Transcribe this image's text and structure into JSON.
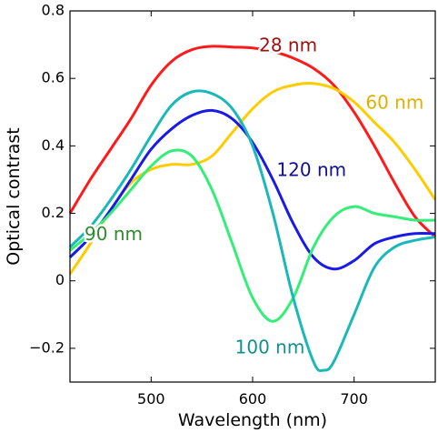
{
  "chart_data": {
    "type": "line",
    "xlabel": "Wavelength (nm)",
    "ylabel": "Optical contrast",
    "xlim": [
      420,
      780
    ],
    "ylim": [
      -0.3,
      0.8
    ],
    "xticks": [
      500,
      600,
      700
    ],
    "xtick_labels": [
      "500",
      "600",
      "700"
    ],
    "yticks": [
      -0.2,
      0,
      0.2,
      0.4,
      0.6,
      0.8
    ],
    "ytick_labels": [
      "−0.2",
      "0",
      "0.2",
      "0.4",
      "0.6",
      "0.8"
    ],
    "grid": false,
    "series": [
      {
        "name": "28 nm",
        "color": "#ff1a1a",
        "label_color": "#a01010",
        "x": [
          420,
          440,
          460,
          480,
          500,
          520,
          540,
          560,
          580,
          600,
          620,
          640,
          660,
          680,
          700,
          720,
          740,
          760,
          780
        ],
        "y": [
          0.2,
          0.3,
          0.39,
          0.48,
          0.58,
          0.65,
          0.685,
          0.695,
          0.693,
          0.69,
          0.68,
          0.66,
          0.63,
          0.58,
          0.5,
          0.4,
          0.29,
          0.19,
          0.13
        ]
      },
      {
        "name": "60 nm",
        "color": "#ffcc00",
        "label_color": "#e0b000",
        "x": [
          420,
          440,
          460,
          480,
          500,
          520,
          540,
          560,
          580,
          600,
          620,
          640,
          660,
          680,
          700,
          720,
          740,
          760,
          780
        ],
        "y": [
          0.02,
          0.11,
          0.21,
          0.29,
          0.33,
          0.345,
          0.345,
          0.37,
          0.44,
          0.51,
          0.56,
          0.58,
          0.585,
          0.57,
          0.53,
          0.47,
          0.41,
          0.33,
          0.24
        ]
      },
      {
        "name": "120 nm",
        "color": "#1a1ae6",
        "label_color": "#101090",
        "x": [
          420,
          440,
          460,
          480,
          500,
          520,
          540,
          560,
          580,
          600,
          620,
          640,
          660,
          680,
          700,
          720,
          740,
          760,
          780
        ],
        "y": [
          0.07,
          0.13,
          0.21,
          0.3,
          0.39,
          0.45,
          0.49,
          0.505,
          0.48,
          0.41,
          0.3,
          0.17,
          0.07,
          0.035,
          0.06,
          0.11,
          0.13,
          0.14,
          0.14
        ]
      },
      {
        "name": "90 nm",
        "color": "#33ee77",
        "label_color": "#2e8b2e",
        "x": [
          420,
          440,
          460,
          480,
          500,
          520,
          540,
          560,
          580,
          600,
          620,
          640,
          660,
          680,
          700,
          720,
          740,
          760,
          780
        ],
        "y": [
          0.09,
          0.14,
          0.2,
          0.27,
          0.34,
          0.385,
          0.37,
          0.27,
          0.11,
          -0.05,
          -0.12,
          -0.05,
          0.1,
          0.19,
          0.22,
          0.2,
          0.19,
          0.18,
          0.18
        ]
      },
      {
        "name": "100 nm",
        "color": "#1ab8b8",
        "label_color": "#128f8f",
        "x": [
          420,
          440,
          460,
          480,
          500,
          520,
          540,
          560,
          580,
          600,
          620,
          640,
          660,
          670,
          680,
          700,
          720,
          740,
          760,
          780
        ],
        "y": [
          0.1,
          0.16,
          0.24,
          0.33,
          0.43,
          0.52,
          0.56,
          0.555,
          0.51,
          0.4,
          0.2,
          -0.05,
          -0.24,
          -0.265,
          -0.24,
          -0.1,
          0.04,
          0.1,
          0.12,
          0.13
        ]
      }
    ],
    "annotations": [
      {
        "text": "28 nm",
        "series": "28 nm",
        "x": 635,
        "y": 0.695
      },
      {
        "text": "60 nm",
        "series": "60 nm",
        "x": 740,
        "y": 0.525
      },
      {
        "text": "120 nm",
        "series": "120 nm",
        "x": 658,
        "y": 0.325
      },
      {
        "text": "90 nm",
        "series": "90 nm",
        "x": 463,
        "y": 0.135
      },
      {
        "text": "100 nm",
        "series": "100 nm",
        "x": 617,
        "y": -0.2
      }
    ]
  }
}
